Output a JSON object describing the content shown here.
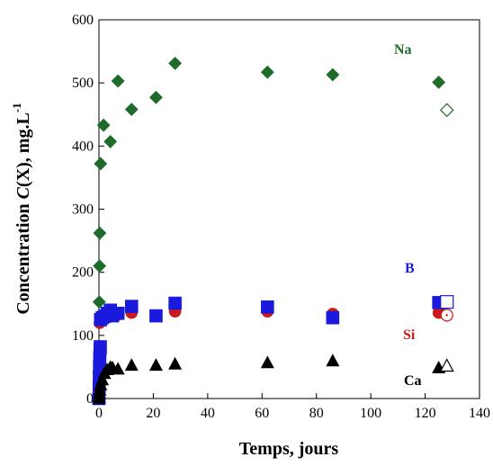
{
  "chart_data": {
    "type": "scatter",
    "xlabel": "Temps, jours",
    "ylabel": "Concentration C(X), mg.L-1",
    "ylabel_parts": {
      "prefix": "Concentration ",
      "italic": "C",
      "suffix": "(X), mg.L",
      "superscript": "-1"
    },
    "xlim": [
      0,
      140
    ],
    "ylim": [
      0,
      600
    ],
    "xticks": [
      "0",
      "20",
      "40",
      "60",
      "80",
      "100",
      "120",
      "140"
    ],
    "yticks": [
      "0",
      "100",
      "200",
      "300",
      "400",
      "500",
      "600"
    ],
    "grid": false,
    "series": [
      {
        "name": "Na",
        "marker": "diamond",
        "color": "#1e6b2a",
        "label_color": "#1e6b2a",
        "points": [
          {
            "x": 0,
            "y": 0
          },
          {
            "x": 0.1,
            "y": 153
          },
          {
            "x": 0.2,
            "y": 210
          },
          {
            "x": 0.3,
            "y": 262
          },
          {
            "x": 0.6,
            "y": 372
          },
          {
            "x": 1.7,
            "y": 433
          },
          {
            "x": 4.2,
            "y": 407
          },
          {
            "x": 7,
            "y": 503
          },
          {
            "x": 12,
            "y": 458
          },
          {
            "x": 21,
            "y": 477
          },
          {
            "x": 28,
            "y": 531
          },
          {
            "x": 62,
            "y": 517
          },
          {
            "x": 86,
            "y": 513
          },
          {
            "x": 125,
            "y": 501
          }
        ],
        "open_points": [
          {
            "x": 128,
            "y": 457
          }
        ]
      },
      {
        "name": "B",
        "marker": "square",
        "color": "#1a1adc",
        "label_color": "#1a1adc",
        "points": [
          {
            "x": 0,
            "y": 0
          },
          {
            "x": 0.1,
            "y": 20
          },
          {
            "x": 0.15,
            "y": 35
          },
          {
            "x": 0.2,
            "y": 50
          },
          {
            "x": 0.3,
            "y": 65
          },
          {
            "x": 0.4,
            "y": 78
          },
          {
            "x": 0.5,
            "y": 82
          },
          {
            "x": 0.6,
            "y": 125
          },
          {
            "x": 1.2,
            "y": 128
          },
          {
            "x": 2,
            "y": 130
          },
          {
            "x": 3,
            "y": 135
          },
          {
            "x": 4.2,
            "y": 140
          },
          {
            "x": 5,
            "y": 131
          },
          {
            "x": 7,
            "y": 135
          },
          {
            "x": 12,
            "y": 146
          },
          {
            "x": 21,
            "y": 131
          },
          {
            "x": 28,
            "y": 151
          },
          {
            "x": 62,
            "y": 145
          },
          {
            "x": 86,
            "y": 128
          },
          {
            "x": 125,
            "y": 152
          }
        ],
        "open_points": [
          {
            "x": 128,
            "y": 153
          }
        ]
      },
      {
        "name": "Si",
        "marker": "circle",
        "color": "#cc1a1a",
        "label_color": "#cc1a1a",
        "points": [
          {
            "x": 0.3,
            "y": 120
          },
          {
            "x": 0.6,
            "y": 122
          },
          {
            "x": 2,
            "y": 130
          },
          {
            "x": 4.2,
            "y": 136
          },
          {
            "x": 7,
            "y": 133
          },
          {
            "x": 12,
            "y": 136
          },
          {
            "x": 21,
            "y": 131
          },
          {
            "x": 28,
            "y": 138
          },
          {
            "x": 62,
            "y": 138
          },
          {
            "x": 86,
            "y": 134
          },
          {
            "x": 125,
            "y": 136
          }
        ],
        "open_points": [
          {
            "x": 128,
            "y": 132
          }
        ]
      },
      {
        "name": "Ca",
        "marker": "triangle",
        "color": "#000000",
        "label_color": "#000000",
        "points": [
          {
            "x": 0,
            "y": 0
          },
          {
            "x": 0.1,
            "y": 3
          },
          {
            "x": 0.2,
            "y": 8
          },
          {
            "x": 0.3,
            "y": 14
          },
          {
            "x": 0.6,
            "y": 22
          },
          {
            "x": 1.2,
            "y": 30
          },
          {
            "x": 2,
            "y": 40
          },
          {
            "x": 3,
            "y": 46
          },
          {
            "x": 4.2,
            "y": 50
          },
          {
            "x": 5,
            "y": 49
          },
          {
            "x": 7,
            "y": 47
          },
          {
            "x": 12,
            "y": 53
          },
          {
            "x": 21,
            "y": 53
          },
          {
            "x": 28,
            "y": 55
          },
          {
            "x": 62,
            "y": 57
          },
          {
            "x": 86,
            "y": 60
          },
          {
            "x": 125,
            "y": 49
          }
        ],
        "open_points": [
          {
            "x": 128,
            "y": 52
          }
        ]
      }
    ],
    "annotations": [
      "Na",
      "B",
      "Si",
      "Ca"
    ]
  }
}
